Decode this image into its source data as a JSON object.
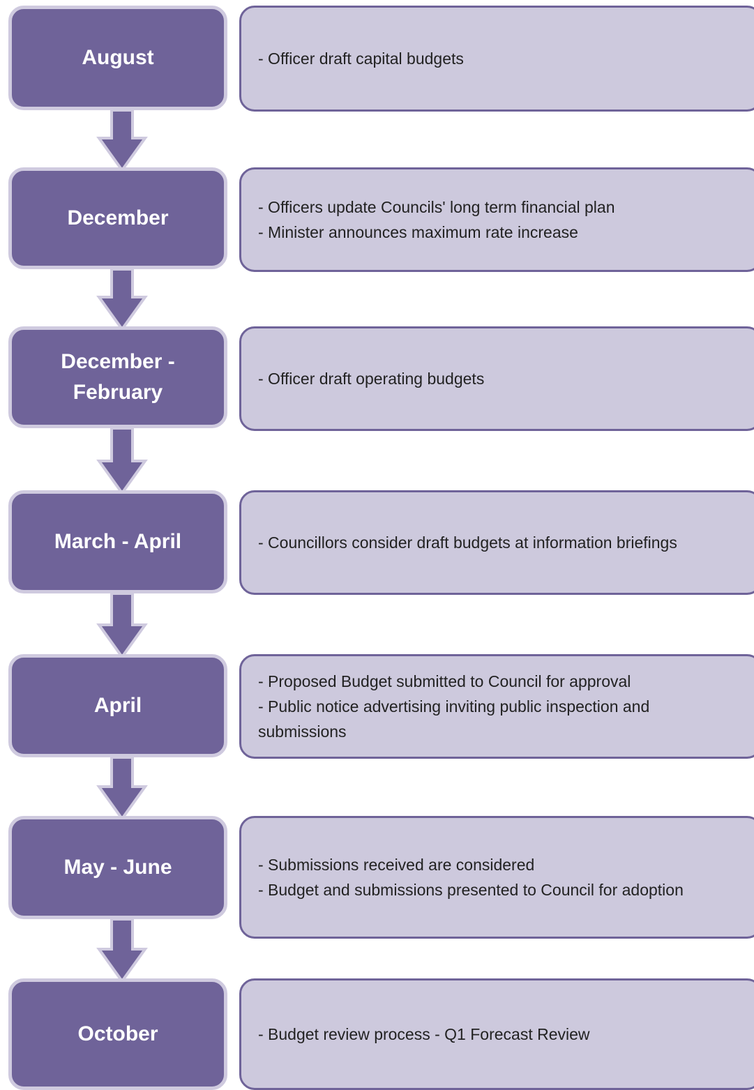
{
  "steps": [
    {
      "period": "August",
      "lines": [
        "- Officer draft capital budgets"
      ]
    },
    {
      "period": "December",
      "lines": [
        "- Officers update Councils' long term financial plan",
        "- Minister announces maximum rate increase"
      ]
    },
    {
      "period": "December - February",
      "lines": [
        "- Officer draft operating budgets"
      ]
    },
    {
      "period": "March - April",
      "lines": [
        "- Councillors consider draft budgets at information briefings"
      ]
    },
    {
      "period": "April",
      "lines": [
        "- Proposed Budget submitted to Council for approval",
        "- Public notice advertising inviting public inspection and submissions"
      ]
    },
    {
      "period": "May - June",
      "lines": [
        "- Submissions received are considered",
        "- Budget and submissions presented to Council for adoption"
      ]
    },
    {
      "period": "October",
      "lines": [
        "- Budget review process - Q1 Forecast Review"
      ]
    }
  ]
}
